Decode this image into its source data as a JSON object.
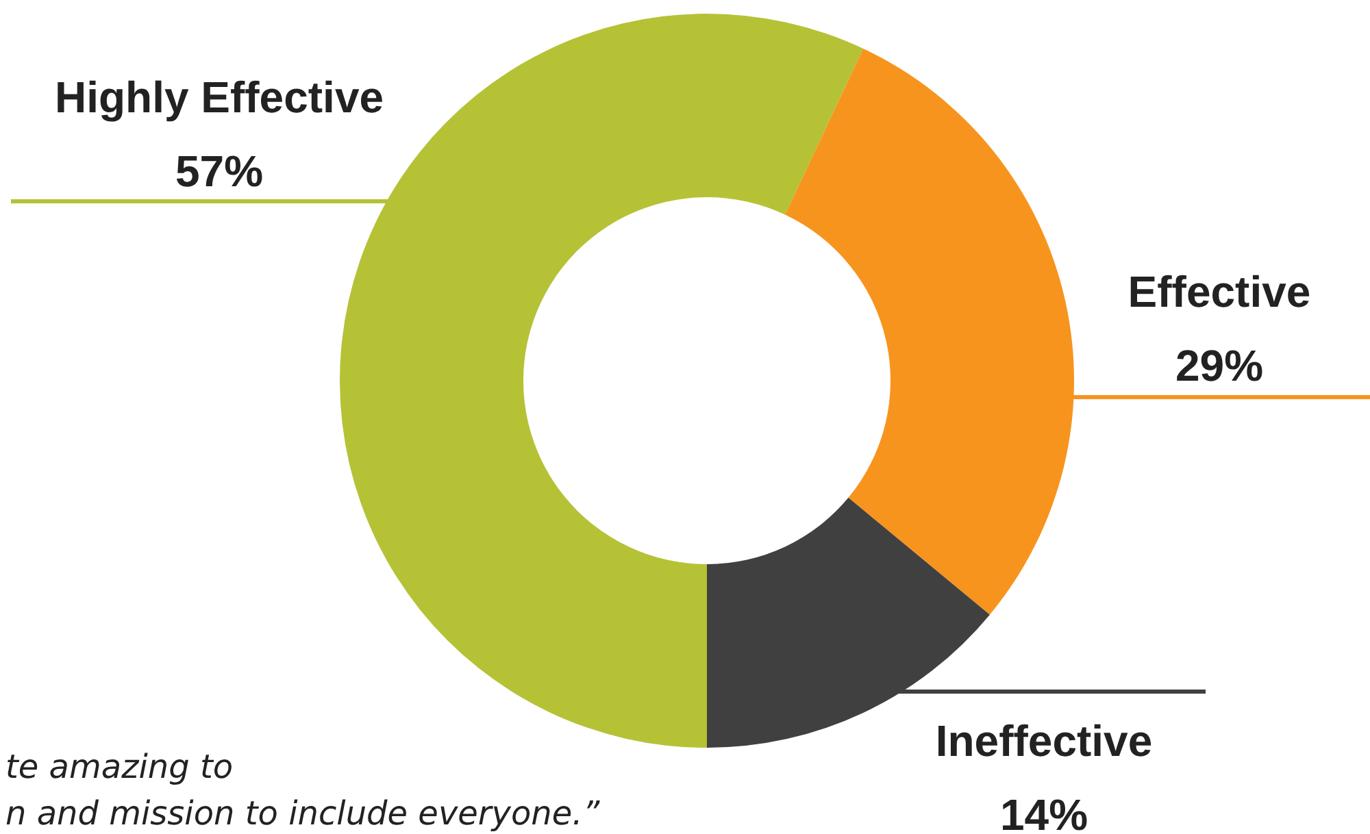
{
  "chart_data": {
    "type": "donut",
    "categories": [
      "Highly Effective",
      "Effective",
      "Ineffective"
    ],
    "values": [
      57,
      29,
      14
    ],
    "colors": [
      "#b5c236",
      "#f7941e",
      "#404040"
    ],
    "value_labels": [
      "57%",
      "29%",
      "14%"
    ],
    "annotations": [
      "te amazing to",
      "n and mission to include everyone.”"
    ]
  }
}
